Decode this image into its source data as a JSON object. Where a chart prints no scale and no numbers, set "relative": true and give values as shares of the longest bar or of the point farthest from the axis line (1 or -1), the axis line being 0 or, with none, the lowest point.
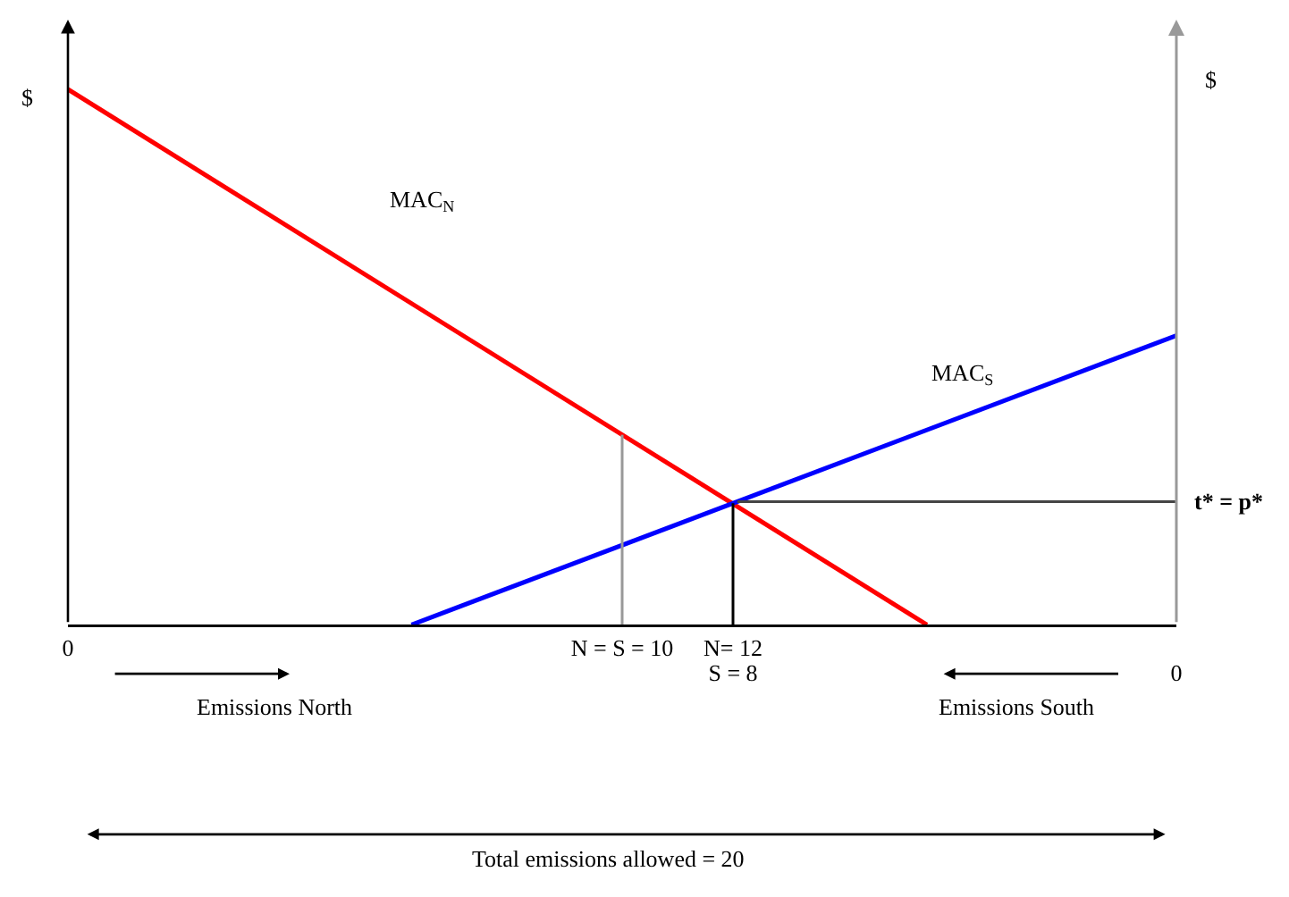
{
  "chart_data": {
    "type": "line",
    "relative": true,
    "legend": false,
    "grid": false,
    "marker": "none",
    "line_style": "solid",
    "ylabel": "$",
    "y2label": "$",
    "xlim": [
      0,
      20
    ],
    "xticks": [
      0,
      {
        "value": 10,
        "label": "N = S = 10"
      },
      {
        "value": 12,
        "label": "N= 12"
      }
    ],
    "x2lim": [
      20,
      0
    ],
    "x2ticks": [
      0,
      {
        "value": 8,
        "label": "S = 8"
      }
    ],
    "series": [
      {
        "name": "MAC$_{N}$",
        "color": "#ff0000",
        "x": [
          0,
          15.5
        ],
        "values": [
          1,
          0
        ]
      },
      {
        "name": "MAC$_{S}$",
        "color": "#0000ff",
        "x": [
          6.2,
          20
        ],
        "values": [
          0,
          0.54
        ]
      }
    ],
    "ref_lines": [
      {
        "axis": "x",
        "value": 10,
        "color": "#999999"
      },
      {
        "axis": "x",
        "value": 12,
        "color": "#000000"
      },
      {
        "axis": "y",
        "value": 0.23,
        "label": "t* = p*",
        "color": "#444444"
      }
    ],
    "annotations": [
      "Emissions North",
      "Emissions South",
      "Total emissions allowed = 20"
    ]
  }
}
